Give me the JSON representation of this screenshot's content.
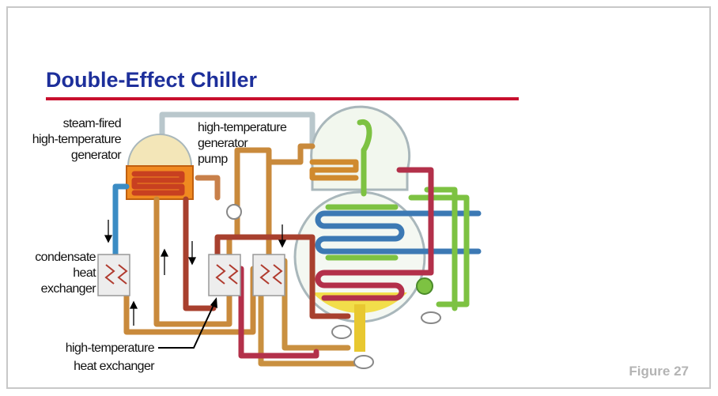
{
  "slide": {
    "title": "Double-Effect Chiller",
    "figure": "Figure 27"
  },
  "labels": [
    {
      "lines": [
        "steam-fired",
        "high-temperature",
        "generator"
      ]
    },
    {
      "lines": [
        "high-temperature",
        "generator",
        "pump"
      ]
    },
    {
      "lines": [
        "condensate",
        "heat",
        "exchanger"
      ]
    },
    {
      "lines": [
        "high-temperature",
        "heat exchanger"
      ]
    }
  ]
}
